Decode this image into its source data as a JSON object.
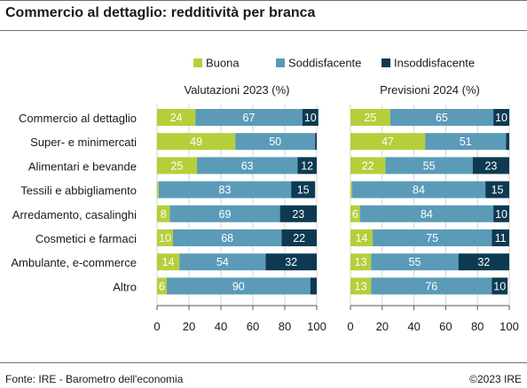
{
  "title": "Commercio al dettaglio: redditività per branca",
  "footer": {
    "source": "Fonte: IRE - Barometro dell'economia",
    "copyright": "©2023 IRE"
  },
  "colors": {
    "buona": "#b5cf3b",
    "soddisfacente": "#5b9bb8",
    "insoddisfacente": "#0d3a52"
  },
  "chart_data": {
    "type": "bar",
    "orientation": "horizontal",
    "stacked": true,
    "legend": [
      "Buona",
      "Soddisfacente",
      "Insoddisfacente"
    ],
    "legend_position": "top",
    "categories": [
      "Commercio al dettaglio",
      "Super- e minimercati",
      "Alimentari e bevande",
      "Tessili e abbigliamento",
      "Arredamento, casalinghi",
      "Cosmetici e farmaci",
      "Ambulante, e-commerce",
      "Altro"
    ],
    "panels": [
      {
        "title": "Valutazioni 2023 (%)",
        "xlim": [
          0,
          100
        ],
        "ticks": [
          "0",
          "20",
          "40",
          "60",
          "80",
          "100"
        ],
        "series": [
          {
            "name": "Buona",
            "values": [
              24,
              49,
              25,
              1,
              8,
              10,
              14,
              6
            ],
            "labels": [
              "24",
              "49",
              "25",
              "",
              "8",
              "10",
              "14",
              "6"
            ]
          },
          {
            "name": "Soddisfacente",
            "values": [
              67,
              50,
              63,
              83,
              69,
              68,
              54,
              90
            ],
            "labels": [
              "67",
              "50",
              "63",
              "83",
              "69",
              "68",
              "54",
              "90"
            ]
          },
          {
            "name": "Insoddisfacente",
            "values": [
              10,
              1,
              12,
              15,
              23,
              22,
              32,
              4
            ],
            "labels": [
              "10",
              "",
              "12",
              "15",
              "23",
              "22",
              "32",
              ""
            ]
          }
        ]
      },
      {
        "title": "Previsioni 2024 (%)",
        "xlim": [
          0,
          100
        ],
        "ticks": [
          "0",
          "20",
          "40",
          "60",
          "80",
          "100"
        ],
        "series": [
          {
            "name": "Buona",
            "values": [
              25,
              47,
              22,
              1,
              6,
              14,
              13,
              13
            ],
            "labels": [
              "25",
              "47",
              "22",
              "",
              "6",
              "14",
              "13",
              "13"
            ]
          },
          {
            "name": "Soddisfacente",
            "values": [
              65,
              51,
              55,
              84,
              84,
              75,
              55,
              76
            ],
            "labels": [
              "65",
              "51",
              "55",
              "84",
              "84",
              "75",
              "55",
              "76"
            ]
          },
          {
            "name": "Insoddisfacente",
            "values": [
              10,
              2,
              23,
              15,
              10,
              11,
              32,
              10
            ],
            "labels": [
              "10",
              "",
              "23",
              "15",
              "10",
              "11",
              "32",
              "10"
            ]
          }
        ]
      }
    ]
  }
}
